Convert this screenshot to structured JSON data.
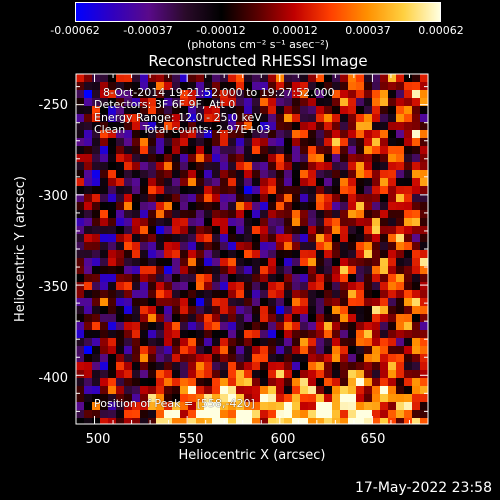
{
  "colorbar": {
    "ticks": [
      "-0.00062",
      "-0.00037",
      "-0.00012",
      "0.00012",
      "0.00037",
      "0.00062"
    ],
    "units": "(photons cm⁻² s⁻¹ asec⁻²)",
    "colors": [
      "#0000ff",
      "#3000c0",
      "#5a0a8a",
      "#2a0a2a",
      "#000000",
      "#5a0000",
      "#c00000",
      "#ff4000",
      "#ff9000",
      "#ffd040",
      "#ffffe0"
    ]
  },
  "title": "Reconstructed RHESSI Image",
  "info": {
    "time_range": "8-Oct-2014 19:21:52.000 to 19:27:52.000",
    "detectors": "Detectors: 3F 6F 9F, Att 0",
    "energy": "Energy Range: 12.0 - 25.0 keV",
    "clean": "Clean     Total counts: 2.97E+03",
    "peak": "Position of Peak = [558,-420]"
  },
  "axes": {
    "x": {
      "label": "Heliocentric X (arcsec)",
      "ticks": [
        "500",
        "550",
        "600",
        "650"
      ],
      "range": [
        490,
        680
      ]
    },
    "y": {
      "label": "Heliocentric Y (arcsec)",
      "ticks": [
        "-250",
        "-300",
        "-350",
        "-400"
      ],
      "range": [
        -427,
        -233
      ]
    }
  },
  "timestamp": "17-May-2022 23:58"
}
